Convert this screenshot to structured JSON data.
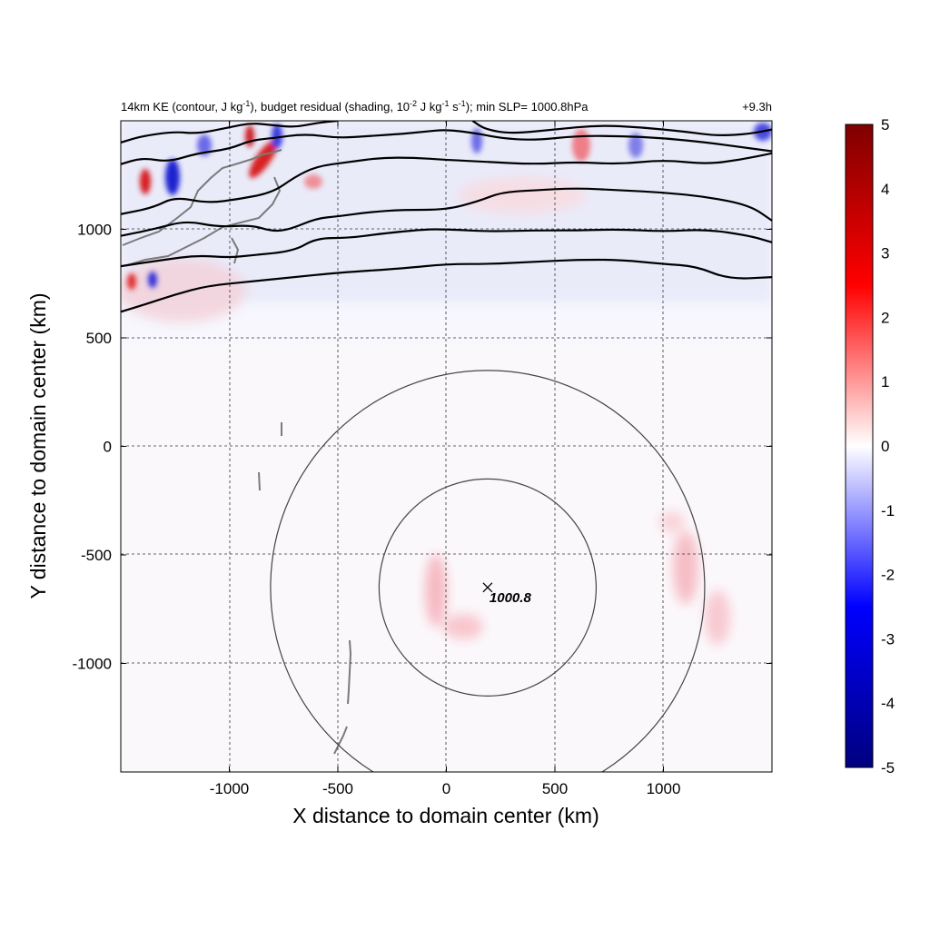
{
  "chart_data": {
    "type": "heatmap",
    "title": {
      "part1": "14km KE (contour, J kg",
      "sup1": "-1",
      "part2": "), budget residual (shading, 10",
      "sup2": "-2",
      "part3": " J kg",
      "sup3": "-1",
      "part4": " s",
      "sup4": "-1",
      "part5": "); min SLP= 1000.8hPa"
    },
    "time_label": "+9.3h",
    "xlabel": "X distance to domain center (km)",
    "ylabel": "Y distance to domain center (km)",
    "xlim": [
      -1500,
      1500
    ],
    "ylim": [
      -1500,
      1500
    ],
    "xticks": [
      -1000,
      -500,
      0,
      500,
      1000
    ],
    "yticks": [
      -1000,
      -500,
      0,
      500,
      1000
    ],
    "xtick_labels": [
      "-1000",
      "-500",
      "0",
      "500",
      "1000"
    ],
    "ytick_labels": [
      "-1000",
      "-500",
      "0",
      "500",
      "1000"
    ],
    "grid": "dashed",
    "colorbar": {
      "min": -5,
      "max": 5,
      "ticks": [
        5,
        4,
        3,
        2,
        1,
        0,
        -1,
        -2,
        -3,
        -4,
        -5
      ],
      "tick_labels": [
        "5",
        "4",
        "3",
        "2",
        "1",
        "0",
        "-1",
        "-2",
        "-3",
        "-4",
        "-5"
      ],
      "colors": [
        "#00007f",
        "#0000ff",
        "#ffffff",
        "#ff0000",
        "#7f0000"
      ]
    },
    "storm_center": {
      "x": 190,
      "y": -650,
      "min_slp_label": "1000.8"
    },
    "range_circles_radius_km": [
      500,
      1000
    ],
    "ke_contours": [
      {
        "points": [
          [
            -1500,
            620
          ],
          [
            -1400,
            650
          ],
          [
            -1250,
            700
          ],
          [
            -1100,
            740
          ],
          [
            -900,
            760
          ],
          [
            -700,
            780
          ],
          [
            -500,
            800
          ],
          [
            -200,
            820
          ],
          [
            0,
            840
          ],
          [
            200,
            840
          ],
          [
            400,
            850
          ],
          [
            600,
            860
          ],
          [
            800,
            860
          ],
          [
            1000,
            840
          ],
          [
            1150,
            830
          ],
          [
            1300,
            770
          ],
          [
            1500,
            780
          ]
        ]
      },
      {
        "points": [
          [
            -1500,
            830
          ],
          [
            -1300,
            860
          ],
          [
            -1150,
            880
          ],
          [
            -1000,
            870
          ],
          [
            -900,
            880
          ],
          [
            -700,
            900
          ],
          [
            -600,
            960
          ],
          [
            -450,
            960
          ],
          [
            -300,
            980
          ],
          [
            -100,
            1000
          ],
          [
            0,
            1000
          ],
          [
            200,
            990
          ],
          [
            400,
            995
          ],
          [
            600,
            995
          ],
          [
            800,
            1000
          ],
          [
            1000,
            990
          ],
          [
            1200,
            1000
          ],
          [
            1400,
            970
          ],
          [
            1500,
            940
          ]
        ]
      },
      {
        "points": [
          [
            -1500,
            970
          ],
          [
            -1350,
            1000
          ],
          [
            -1200,
            1040
          ],
          [
            -1050,
            1010
          ],
          [
            -900,
            1020
          ],
          [
            -800,
            990
          ],
          [
            -720,
            1000
          ],
          [
            -600,
            1050
          ],
          [
            -500,
            1060
          ],
          [
            -350,
            1080
          ],
          [
            -200,
            1090
          ],
          [
            0,
            1090
          ],
          [
            150,
            1130
          ],
          [
            250,
            1170
          ],
          [
            400,
            1180
          ],
          [
            600,
            1190
          ],
          [
            800,
            1180
          ],
          [
            1000,
            1170
          ],
          [
            1200,
            1150
          ],
          [
            1400,
            1110
          ],
          [
            1500,
            1040
          ]
        ]
      },
      {
        "points": [
          [
            -1500,
            1070
          ],
          [
            -1350,
            1100
          ],
          [
            -1250,
            1150
          ],
          [
            -1100,
            1120
          ],
          [
            -950,
            1140
          ],
          [
            -800,
            1170
          ],
          [
            -700,
            1240
          ],
          [
            -600,
            1290
          ],
          [
            -450,
            1310
          ],
          [
            -300,
            1330
          ],
          [
            -150,
            1330
          ],
          [
            0,
            1320
          ],
          [
            200,
            1310
          ],
          [
            400,
            1300
          ],
          [
            600,
            1310
          ],
          [
            800,
            1300
          ],
          [
            1000,
            1320
          ],
          [
            1200,
            1300
          ],
          [
            1350,
            1320
          ],
          [
            1500,
            1350
          ]
        ]
      },
      {
        "points": [
          [
            -1500,
            1300
          ],
          [
            -1400,
            1330
          ],
          [
            -1280,
            1310
          ],
          [
            -1150,
            1350
          ],
          [
            -1000,
            1370
          ],
          [
            -900,
            1410
          ],
          [
            -800,
            1420
          ],
          [
            -650,
            1440
          ],
          [
            -500,
            1420
          ],
          [
            -350,
            1430
          ],
          [
            -200,
            1440
          ],
          [
            -100,
            1450
          ],
          [
            0,
            1460
          ],
          [
            150,
            1440
          ],
          [
            250,
            1420
          ],
          [
            400,
            1410
          ],
          [
            600,
            1430
          ],
          [
            800,
            1430
          ],
          [
            1000,
            1420
          ],
          [
            1200,
            1400
          ],
          [
            1350,
            1380
          ],
          [
            1500,
            1360
          ]
        ]
      },
      {
        "points": [
          [
            -1500,
            1400
          ],
          [
            -1400,
            1430
          ],
          [
            -1250,
            1450
          ],
          [
            -1150,
            1440
          ],
          [
            -1000,
            1470
          ],
          [
            -900,
            1490
          ],
          [
            -800,
            1480
          ],
          [
            -700,
            1470
          ],
          [
            -600,
            1490
          ],
          [
            -500,
            1500
          ]
        ]
      },
      {
        "points": [
          [
            120,
            1500
          ],
          [
            180,
            1460
          ],
          [
            300,
            1440
          ],
          [
            500,
            1460
          ],
          [
            700,
            1480
          ],
          [
            900,
            1470
          ],
          [
            1100,
            1450
          ],
          [
            1250,
            1430
          ],
          [
            1400,
            1440
          ],
          [
            1500,
            1460
          ]
        ]
      }
    ]
  }
}
